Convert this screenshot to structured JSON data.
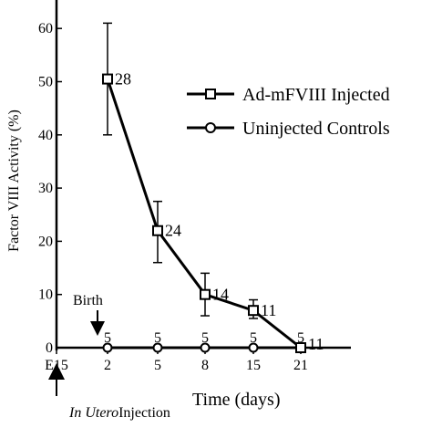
{
  "chart_data": {
    "type": "line",
    "title": "",
    "xlabel": "Time (days)",
    "ylabel": "Factor VIII Activity (%)",
    "x_ticks": [
      "E15",
      "2",
      "5",
      "8",
      "15",
      "21"
    ],
    "y_ticks": [
      "0",
      "10",
      "20",
      "30",
      "40",
      "50",
      "60"
    ],
    "ylim": [
      0,
      65
    ],
    "grid": false,
    "legend_position": "right",
    "series": [
      {
        "name": "Ad-mFVIII Injected",
        "marker": "square",
        "points": [
          {
            "x": "2",
            "y": 50.5,
            "err_low": 40,
            "err_high": 61,
            "n": "28"
          },
          {
            "x": "5",
            "y": 22,
            "err_low": 16,
            "err_high": 27.5,
            "n": "24"
          },
          {
            "x": "8",
            "y": 10,
            "err_low": 6,
            "err_high": 14,
            "n": "14"
          },
          {
            "x": "15",
            "y": 7,
            "err_low": 5.5,
            "err_high": 9,
            "n": "11"
          },
          {
            "x": "21",
            "y": 0,
            "n": "11"
          }
        ]
      },
      {
        "name": "Uninjected Controls",
        "marker": "circle",
        "points": [
          {
            "x": "2",
            "y": 0,
            "n": "5"
          },
          {
            "x": "5",
            "y": 0,
            "n": "5"
          },
          {
            "x": "8",
            "y": 0,
            "n": "5"
          },
          {
            "x": "15",
            "y": 0,
            "n": "5"
          },
          {
            "x": "21",
            "y": 0,
            "n": "5"
          }
        ]
      }
    ],
    "annotations": {
      "birth": "Birth",
      "injection_italic": "In Utero",
      "injection_rest": "Injection"
    }
  }
}
